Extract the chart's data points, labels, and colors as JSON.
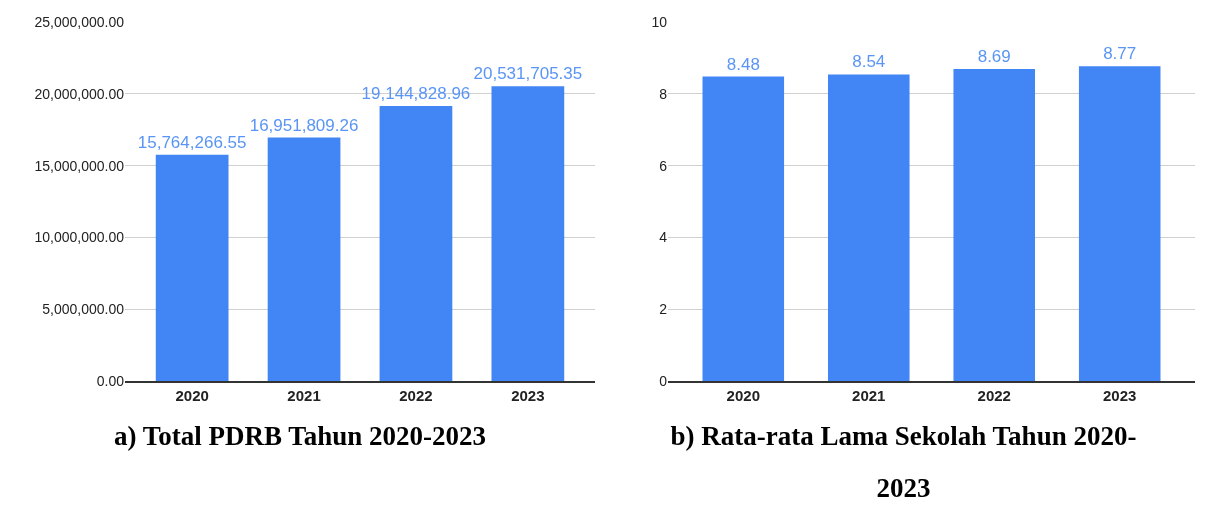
{
  "chart_data": [
    {
      "type": "bar",
      "title": "a) Total PDRB Tahun 2020-2023",
      "categories": [
        "2020",
        "2021",
        "2022",
        "2023"
      ],
      "values": [
        15764266.55,
        16951809.26,
        19144828.96,
        20531705.35
      ],
      "value_labels": [
        "15,764,266.55",
        "16,951,809.26",
        "19,144,828.96",
        "20,531,705.35"
      ],
      "color": "#4285f4",
      "ylim": [
        0,
        25000000
      ],
      "yticks": [
        {
          "value": 0,
          "label": "0.00"
        },
        {
          "value": 5000000,
          "label": "5,000,000.00"
        },
        {
          "value": 10000000,
          "label": "10,000,000.00"
        },
        {
          "value": 15000000,
          "label": "15,000,000.00"
        },
        {
          "value": 20000000,
          "label": "20,000,000.00"
        },
        {
          "value": 25000000,
          "label": "25,000,000.00"
        }
      ],
      "grid": "y"
    },
    {
      "type": "bar",
      "title": "b) Rata-rata Lama Sekolah Tahun 2020-2023",
      "categories": [
        "2020",
        "2021",
        "2022",
        "2023"
      ],
      "values": [
        8.48,
        8.54,
        8.69,
        8.77
      ],
      "data_labels": true,
      "color": "#4285f4",
      "ylim": [
        0,
        10
      ],
      "yticks": [
        0,
        2,
        4,
        6,
        8,
        10
      ],
      "grid": "y"
    }
  ]
}
